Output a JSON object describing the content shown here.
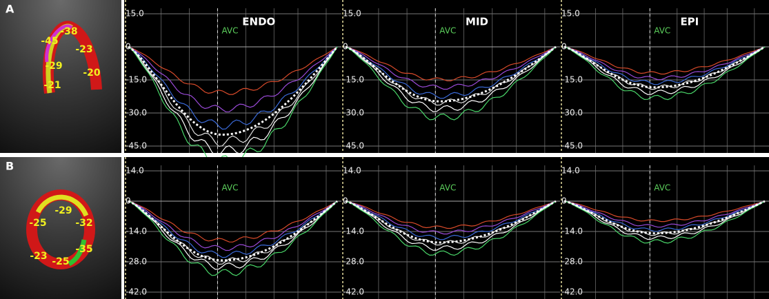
{
  "panels": [
    {
      "label": "A",
      "segment_labels": [
        "-38",
        "-45",
        "-23",
        "-29",
        "-20",
        "-21"
      ],
      "plots": [
        {
          "title": "ENDO",
          "marker": "AVC",
          "ticks": [
            "15.0",
            "0",
            "-15.0",
            "-30.0",
            "-45.0"
          ]
        },
        {
          "title": "MID",
          "marker": "AVC",
          "ticks": [
            "15.0",
            "0",
            "-15.0",
            "-30.0",
            "-45.0"
          ]
        },
        {
          "title": "EPI",
          "marker": "AVC",
          "ticks": [
            "15.0",
            "0",
            "-15.0",
            "-30.0",
            "-45.0"
          ]
        }
      ]
    },
    {
      "label": "B",
      "segment_labels": [
        "-29",
        "-25",
        "-32",
        "-23",
        "-35",
        "-25"
      ],
      "plots": [
        {
          "marker": "AVC",
          "ticks": [
            "14.0",
            "0",
            "-14.0",
            "-28.0",
            "-42.0"
          ]
        },
        {
          "marker": "AVC",
          "ticks": [
            "14.0",
            "0",
            "-14.0",
            "-28.0",
            "-42.0"
          ]
        },
        {
          "marker": "AVC",
          "ticks": [
            "14.0",
            "0",
            "-14.0",
            "-28.0",
            "-42.0"
          ]
        }
      ]
    }
  ]
}
